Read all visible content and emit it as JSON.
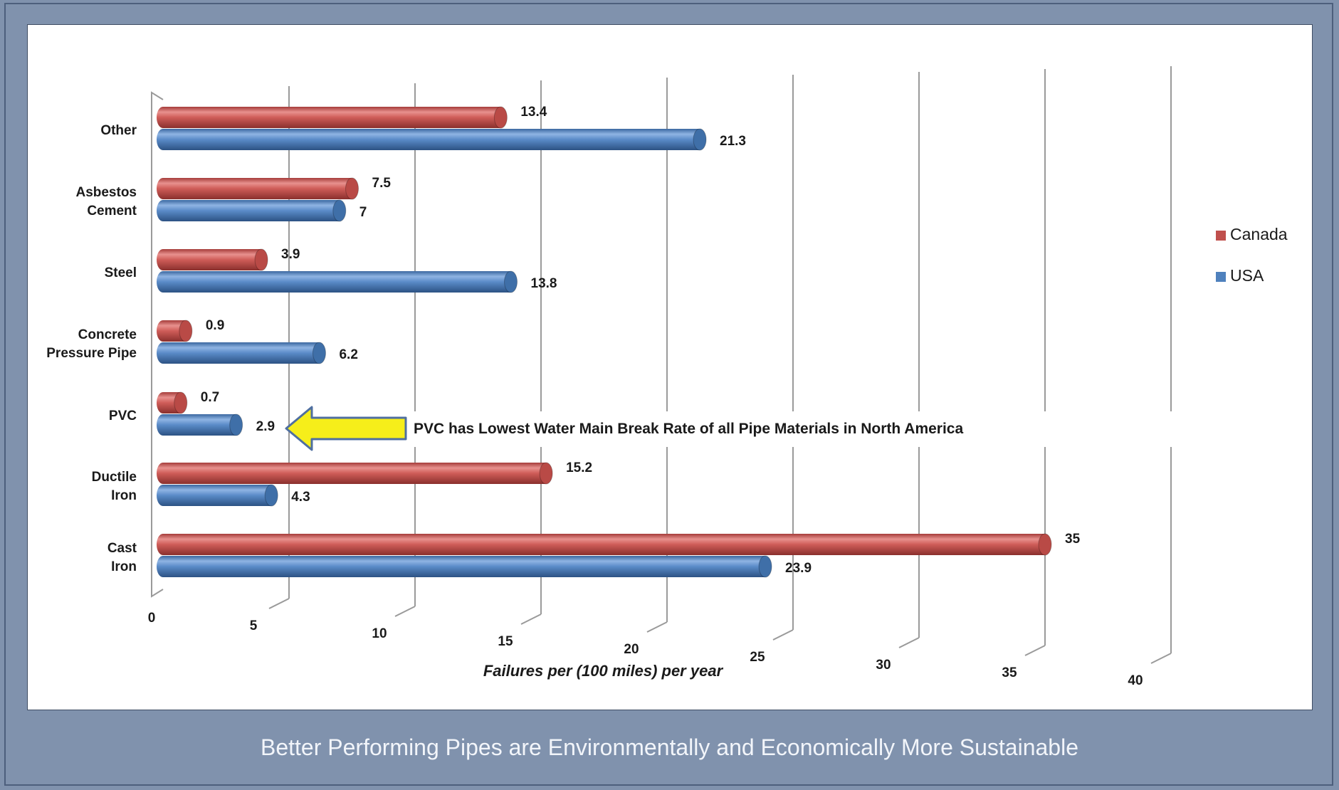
{
  "colors": {
    "canada": "#c0504d",
    "usa": "#4f81bd",
    "arrow_fill": "#f6ee1a",
    "arrow_stroke": "#4f6fa0"
  },
  "chart_data": {
    "type": "bar",
    "orientation": "horizontal",
    "categories": [
      "Other",
      "Asbestos Cement",
      "Steel",
      "Concrete Pressure Pipe",
      "PVC",
      "Ductile Iron",
      "Cast Iron"
    ],
    "category_lines": [
      [
        "Other"
      ],
      [
        "Asbestos",
        "Cement"
      ],
      [
        "Steel"
      ],
      [
        "Concrete",
        "Pressure Pipe"
      ],
      [
        "PVC"
      ],
      [
        "Ductile",
        "Iron"
      ],
      [
        "Cast",
        "Iron"
      ]
    ],
    "series": [
      {
        "name": "Canada",
        "values": [
          13.4,
          7.5,
          3.9,
          0.9,
          0.7,
          15.2,
          35
        ],
        "labels": [
          "13.4",
          "7.5",
          "3.9",
          "0.9",
          "0.7",
          "15.2",
          "35"
        ]
      },
      {
        "name": "USA",
        "values": [
          21.3,
          7,
          13.8,
          6.2,
          2.9,
          4.3,
          23.9
        ],
        "labels": [
          "21.3",
          "7",
          "13.8",
          "6.2",
          "2.9",
          "4.3",
          "23.9"
        ]
      }
    ],
    "xlabel": "Failures per (100 miles) per year",
    "xticks": [
      "0",
      "5",
      "10",
      "15",
      "20",
      "25",
      "30",
      "35",
      "40"
    ],
    "xlim": [
      0,
      40
    ],
    "grid": true,
    "legend": "right",
    "annotation": "PVC has Lowest Water Main Break Rate of all Pipe Materials in North America"
  },
  "caption": "Better Performing Pipes are Environmentally and Economically More Sustainable"
}
